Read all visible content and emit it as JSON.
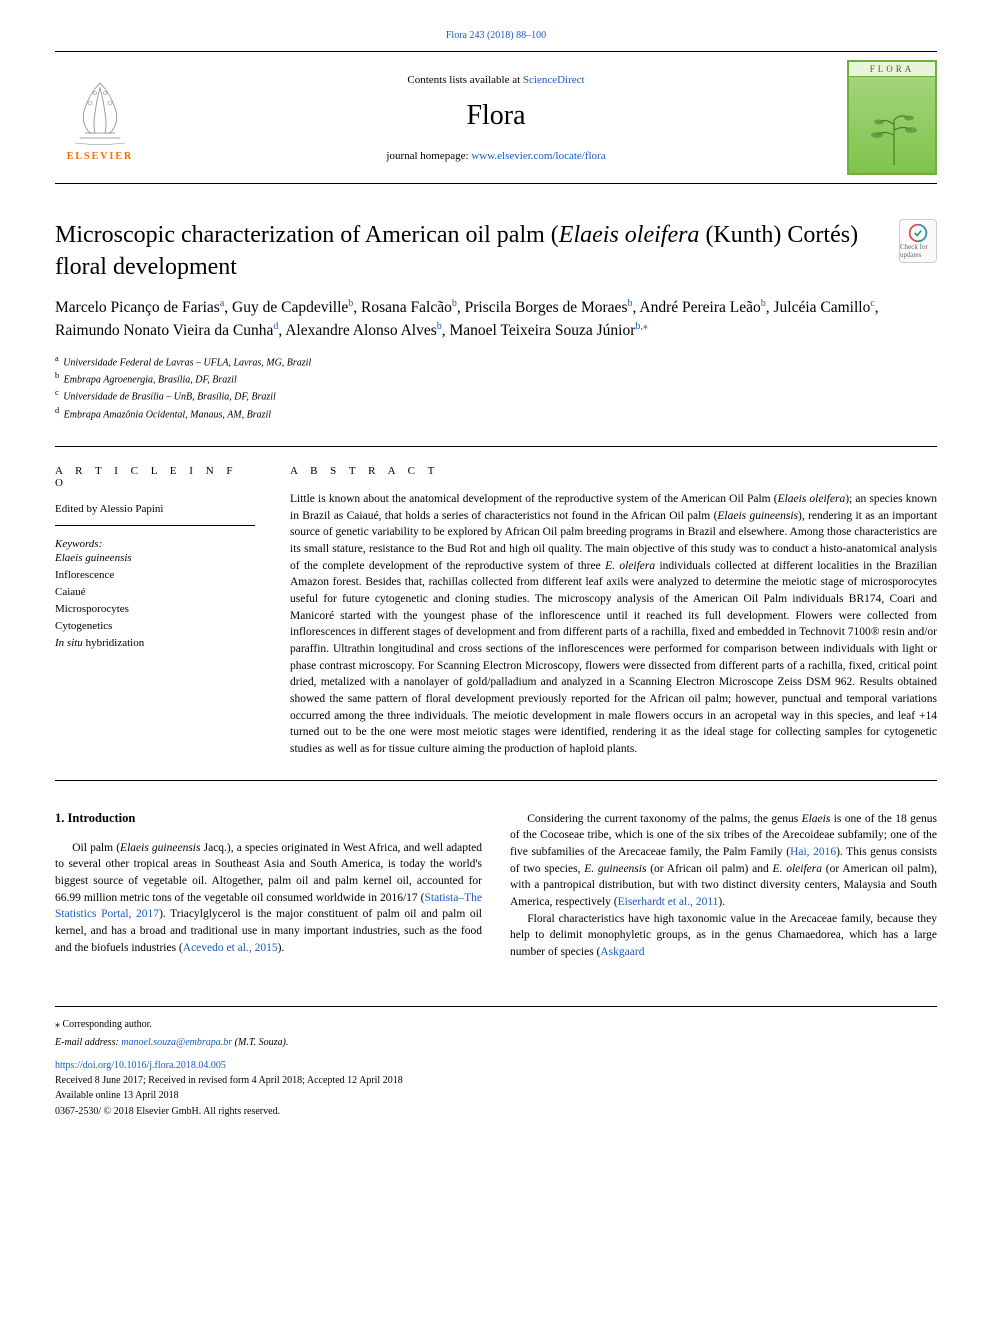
{
  "top_ref": "Flora 243 (2018) 88–100",
  "header": {
    "contents_prefix": "Contents lists available at ",
    "contents_link": "ScienceDirect",
    "journal_name": "Flora",
    "homepage_prefix": "journal homepage: ",
    "homepage_link": "www.elsevier.com/locate/flora",
    "elsevier_label": "ELSEVIER",
    "cover_label": "FLORA"
  },
  "crossmark": {
    "label": "Check for updates"
  },
  "article": {
    "title_pre": "Microscopic characterization of American oil palm (",
    "title_italic": "Elaeis oleifera",
    "title_post": " (Kunth) Cortés) floral development",
    "authors_html": "Marcelo Picanço de Farias<sup><a>a</a></sup>, Guy de Capdeville<sup><a>b</a></sup>, Rosana Falcão<sup><a>b</a></sup>, Priscila Borges de Moraes<sup><a>b</a></sup>, André Pereira Leão<sup><a>b</a></sup>, Julcéia Camillo<sup><a>c</a></sup>, Raimundo Nonato Vieira da Cunha<sup><a>d</a></sup>, Alexandre Alonso Alves<sup><a>b</a></sup>, Manoel Teixeira Souza  Júnior<sup><a>b,</a></sup><sup><a>⁎</a></sup>",
    "affiliations": [
      {
        "sup": "a",
        "text": "Universidade Federal de Lavras – UFLA, Lavras, MG, Brazil"
      },
      {
        "sup": "b",
        "text": "Embrapa Agroenergia, Brasília, DF, Brazil"
      },
      {
        "sup": "c",
        "text": "Universidade de Brasília – UnB, Brasília, DF, Brazil"
      },
      {
        "sup": "d",
        "text": "Embrapa Amazônia Ocidental, Manaus, AM, Brazil"
      }
    ]
  },
  "info": {
    "label": "A R T I C L E  I N F O",
    "edited_by": "Edited by Alessio Papini",
    "keywords_label": "Keywords:",
    "keywords": [
      {
        "text": "Elaeis guineensis",
        "italic": true
      },
      {
        "text": "Inflorescence",
        "italic": false
      },
      {
        "text": "Caiaué",
        "italic": false
      },
      {
        "text": "Microsporocytes",
        "italic": false
      },
      {
        "text": "Cytogenetics",
        "italic": false
      },
      {
        "text": "In situ hybridization",
        "italic_prefix": "In situ",
        "rest": " hybridization"
      }
    ]
  },
  "abstract": {
    "label": "A B S T R A C T",
    "text_parts": [
      {
        "t": "Little is known about the anatomical development of the reproductive system of the American Oil Palm ("
      },
      {
        "t": "Elaeis oleifera",
        "i": true
      },
      {
        "t": "); an species known in Brazil as Caiaué, that holds a series of characteristics not found in the African Oil palm ("
      },
      {
        "t": "Elaeis guineensis",
        "i": true
      },
      {
        "t": "), rendering it as an important source of genetic variability to be explored by African Oil palm breeding programs in Brazil and elsewhere. Among those characteristics are its small stature, resistance to the Bud Rot and high oil quality. The main objective of this study was to conduct a histo-anatomical analysis of the complete development of the reproductive system of three "
      },
      {
        "t": "E. oleifera",
        "i": true
      },
      {
        "t": " individuals collected at different localities in the Brazilian Amazon forest. Besides that, rachillas collected from different leaf axils were analyzed to determine the meiotic stage of microsporocytes useful for future cytogenetic and cloning studies. The microscopy analysis of the American Oil Palm individuals BR174, Coari and Manicoré started with the youngest phase of the inflorescence until it reached its full development. Flowers were collected from inflorescences in different stages of development and from different parts of a rachilla, fixed and embedded in Technovit 7100® resin and/or paraffin. Ultrathin longitudinal and cross sections of the inflorescences were performed for comparison between individuals with light or phase contrast microscopy. For Scanning Electron Microscopy, flowers were dissected from different parts of a rachilla, fixed, critical point dried, metalized with a nanolayer of gold/palladium and analyzed in a Scanning Electron Microscope Zeiss DSM 962. Results obtained showed the same pattern of floral development previously reported for the African oil palm; however, punctual and temporal variations occurred among the three individuals. The meiotic development in male flowers occurs in an acropetal way in this species, and leaf +14 turned out to be the one were most meiotic stages were identified, rendering it as the ideal stage for collecting samples for cytogenetic studies as well as for tissue culture aiming the production of haploid plants."
      }
    ]
  },
  "intro": {
    "heading": "1. Introduction",
    "left_html": "<p>Oil palm (<span class=\"italic\">Elaeis guineensis</span> Jacq.), a species originated in West Africa, and well adapted to several other tropical areas in Southeast Asia and South America, is today the world's biggest source of vegetable oil. Altogether, palm oil and palm kernel oil, accounted for 66.99 million metric tons of the vegetable oil consumed worldwide in 2016/17 (<a>Statista–The Statistics Portal, 2017</a>). Triacylglycerol is the major constituent of palm oil and palm oil kernel, and has a broad and traditional use in many important industries, such as the food and the biofuels industries (<a>Acevedo et al., 2015</a>).</p>",
    "right_html": "<p>Considering the current taxonomy of the palms, the genus <span class=\"italic\">Elaeis</span> is one of the 18 genus of the Cocoseae tribe, which is one of the six tribes of the Arecoideae subfamily; one of the five subfamilies of the Arecaceae family, the Palm Family (<a>Hai, 2016</a>). This genus consists of two species, <span class=\"italic\">E. guineensis</span> (or African oil palm) and <span class=\"italic\">E. oleifera</span> (or American oil palm), with a pantropical distribution, but with two distinct diversity centers, Malaysia and South America, respectively (<a>Eiserhardt et al., 2011</a>).</p><p>Floral characteristics have high taxonomic value in the Arecaceae family, because they help to delimit monophyletic groups, as in the genus Chamaedorea, which has a large number of species (<a>Askgaard</a></p>"
  },
  "footer": {
    "corr_label": "⁎ Corresponding author.",
    "email_label": "E-mail address:",
    "email": "manoel.souza@embrapa.br",
    "email_suffix": " (M.T. Souza).",
    "doi": "https://doi.org/10.1016/j.flora.2018.04.005",
    "received": "Received 8 June 2017; Received in revised form 4 April 2018; Accepted 12 April 2018",
    "available": "Available online 13 April 2018",
    "copyright": "0367-2530/ © 2018 Elsevier GmbH. All rights reserved."
  },
  "colors": {
    "link": "#1a5bb8",
    "elsevier_orange": "#ff6a00",
    "cover_green": "#6fae3a"
  }
}
